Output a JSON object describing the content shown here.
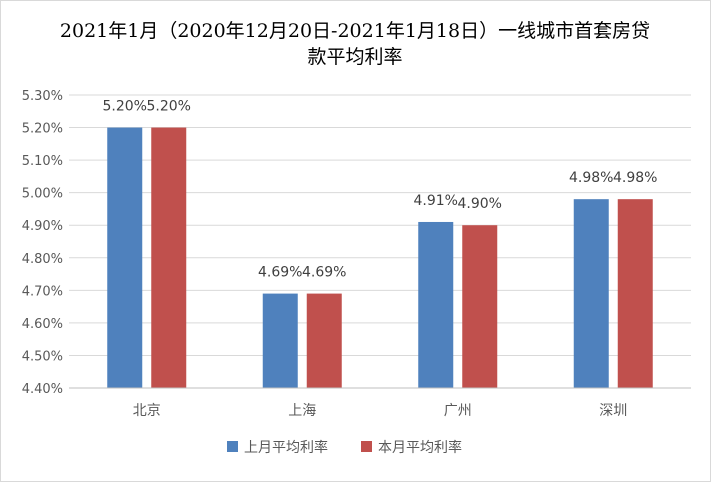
{
  "chart_data": {
    "type": "bar",
    "title_lines": [
      "2021年1月（2020年12月20日-2021年1月18日）一线城市首套房贷",
      "款平均利率"
    ],
    "categories": [
      "北京",
      "上海",
      "广州",
      "深圳"
    ],
    "series": [
      {
        "name": "上月平均利率",
        "values": [
          5.2,
          4.69,
          4.91,
          4.98
        ],
        "color": "#4F81BD"
      },
      {
        "name": "本月平均利率",
        "values": [
          5.2,
          4.69,
          4.9,
          4.98
        ],
        "color": "#C0504D"
      }
    ],
    "data_labels": [
      [
        "5.20%",
        "4.69%",
        "4.91%",
        "4.98%"
      ],
      [
        "5.20%",
        "4.69%",
        "4.90%",
        "4.98%"
      ]
    ],
    "ylim": [
      4.4,
      5.3
    ],
    "y_ticks": [
      "4.40%",
      "4.50%",
      "4.60%",
      "4.70%",
      "4.80%",
      "4.90%",
      "5.00%",
      "5.10%",
      "5.20%",
      "5.30%"
    ],
    "grid": true,
    "legend_position": "bottom",
    "gridline_color": "#d9d9d9",
    "axis_color": "#bfbfbf"
  }
}
